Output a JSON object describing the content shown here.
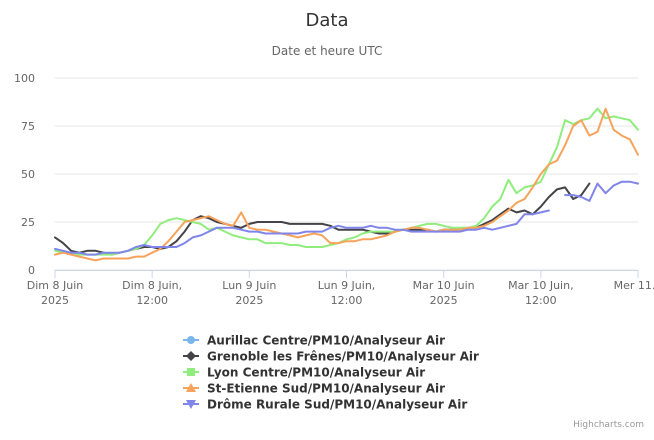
{
  "credits": "Highcharts.com",
  "chart_data": {
    "type": "line",
    "title": "Data",
    "subtitle": "Date et heure UTC",
    "xlabel": "",
    "ylabel": "",
    "ylim": [
      0,
      100
    ],
    "y_ticks": [
      "0",
      "25",
      "50",
      "75",
      "100"
    ],
    "x_ticks": [
      {
        "t": 0,
        "lines": [
          "Dim 8 Juin",
          "2025"
        ]
      },
      {
        "t": 12,
        "lines": [
          "Dim 8 Juin,",
          "12:00"
        ]
      },
      {
        "t": 24,
        "lines": [
          "Lun 9 Juin",
          "2025"
        ]
      },
      {
        "t": 36,
        "lines": [
          "Lun 9 Juin,",
          "12:00"
        ]
      },
      {
        "t": 48,
        "lines": [
          "Mar 10 Juin",
          "2025"
        ]
      },
      {
        "t": 60,
        "lines": [
          "Mar 10 Juin,",
          "12:00"
        ]
      },
      {
        "t": 72,
        "lines": [
          "Mer 11..."
        ]
      }
    ],
    "x_hours_range": [
      0,
      72
    ],
    "grid": true,
    "legend_position": "bottom-center",
    "series": [
      {
        "name": "Aurillac Centre/PM10/Analyseur Air",
        "color": "#7cb5ec",
        "marker": "circle",
        "x": [],
        "values": []
      },
      {
        "name": "Grenoble les Frênes/PM10/Analyseur Air",
        "color": "#434348",
        "marker": "diamond",
        "x": [
          0,
          1,
          2,
          3,
          4,
          5,
          6,
          7,
          8,
          9,
          10,
          11,
          12,
          13,
          14,
          15,
          16,
          17,
          18,
          19,
          20,
          21,
          22,
          23,
          24,
          25,
          26,
          27,
          28,
          29,
          30,
          31,
          32,
          33,
          34,
          35,
          36,
          37,
          38,
          39,
          40,
          41,
          42,
          43,
          44,
          45,
          46,
          47,
          48,
          49,
          50,
          51,
          52,
          53,
          54,
          55,
          56,
          57,
          58,
          59,
          60,
          61,
          62,
          63,
          64,
          65,
          66
        ],
        "values": [
          17,
          14,
          10,
          9,
          10,
          10,
          9,
          8,
          9,
          10,
          11,
          12,
          12,
          11,
          12,
          15,
          20,
          26,
          28,
          27,
          25,
          24,
          23,
          22,
          24,
          25,
          25,
          25,
          25,
          24,
          24,
          24,
          24,
          24,
          23,
          21,
          21,
          21,
          21,
          20,
          19,
          19,
          20,
          21,
          21,
          21,
          21,
          20,
          21,
          21,
          21,
          22,
          22,
          24,
          26,
          29,
          32,
          30,
          31,
          29,
          33,
          38,
          42,
          43,
          37,
          39,
          45
        ]
      },
      {
        "name": "Lyon Centre/PM10/Analyseur Air",
        "color": "#90ed7d",
        "marker": "square",
        "x": [
          0,
          1,
          2,
          3,
          4,
          5,
          6,
          7,
          8,
          9,
          10,
          11,
          12,
          13,
          14,
          15,
          16,
          17,
          18,
          19,
          20,
          21,
          22,
          23,
          24,
          25,
          26,
          27,
          28,
          29,
          30,
          31,
          32,
          33,
          34,
          35,
          36,
          37,
          38,
          39,
          40,
          41,
          42,
          43,
          44,
          45,
          46,
          47,
          48,
          49,
          50,
          51,
          52,
          53,
          54,
          55,
          56,
          57,
          58,
          59,
          60,
          61,
          62,
          63,
          64,
          65,
          66,
          67,
          68,
          69,
          70,
          71,
          72
        ],
        "values": [
          10,
          9,
          9,
          8,
          8,
          8,
          8,
          8,
          9,
          10,
          11,
          13,
          18,
          24,
          26,
          27,
          26,
          25,
          24,
          21,
          22,
          20,
          18,
          17,
          16,
          16,
          14,
          14,
          14,
          13,
          13,
          12,
          12,
          12,
          13,
          14,
          16,
          17,
          19,
          20,
          20,
          20,
          20,
          21,
          22,
          23,
          24,
          24,
          23,
          22,
          22,
          22,
          23,
          27,
          33,
          37,
          47,
          40,
          43,
          44,
          46,
          55,
          64,
          78,
          76,
          78,
          79,
          84,
          79,
          80,
          79,
          78,
          73
        ]
      },
      {
        "name": "St-Etienne Sud/PM10/Analyseur Air",
        "color": "#f7a35c",
        "marker": "triangle",
        "x": [
          0,
          1,
          2,
          3,
          4,
          5,
          6,
          7,
          8,
          9,
          10,
          11,
          12,
          13,
          14,
          15,
          16,
          17,
          18,
          19,
          20,
          21,
          22,
          23,
          24,
          25,
          26,
          27,
          28,
          29,
          30,
          31,
          32,
          33,
          34,
          35,
          36,
          37,
          38,
          39,
          40,
          41,
          42,
          43,
          44,
          45,
          46,
          47,
          48,
          49,
          50,
          51,
          52,
          53,
          54,
          55,
          56,
          57,
          58,
          59,
          60,
          61,
          62,
          63,
          64,
          65,
          66,
          67,
          68,
          69,
          70,
          71,
          72
        ],
        "values": [
          8,
          9,
          8,
          7,
          6,
          5,
          6,
          6,
          6,
          6,
          7,
          7,
          9,
          11,
          15,
          20,
          25,
          26,
          27,
          28,
          26,
          24,
          23,
          30,
          22,
          21,
          21,
          20,
          19,
          18,
          17,
          18,
          19,
          18,
          14,
          14,
          15,
          15,
          16,
          16,
          17,
          18,
          20,
          21,
          22,
          22,
          21,
          20,
          21,
          21,
          21,
          22,
          22,
          23,
          25,
          28,
          31,
          35,
          37,
          43,
          50,
          55,
          57,
          65,
          75,
          78,
          70,
          72,
          84,
          73,
          70,
          68,
          60
        ]
      },
      {
        "name": "Drôme Rurale Sud/PM10/Analyseur Air",
        "color": "#8085e9",
        "marker": "triangle-down",
        "x": [
          0,
          1,
          2,
          3,
          4,
          5,
          6,
          7,
          8,
          9,
          10,
          11,
          12,
          13,
          14,
          15,
          16,
          17,
          18,
          19,
          20,
          21,
          22,
          23,
          24,
          25,
          26,
          27,
          28,
          29,
          30,
          31,
          32,
          33,
          34,
          35,
          36,
          37,
          38,
          39,
          40,
          41,
          42,
          43,
          44,
          45,
          46,
          47,
          48,
          49,
          50,
          51,
          52,
          53,
          54,
          55,
          56,
          57,
          58,
          59,
          60,
          61,
          62,
          63,
          64,
          65,
          66,
          67,
          68,
          69,
          70,
          71,
          72
        ],
        "values": [
          11,
          10,
          9,
          9,
          8,
          8,
          9,
          9,
          9,
          10,
          12,
          13,
          12,
          12,
          12,
          12,
          14,
          17,
          18,
          20,
          22,
          22,
          22,
          21,
          20,
          20,
          19,
          19,
          19,
          19,
          19,
          20,
          20,
          20,
          22,
          23,
          22,
          22,
          22,
          23,
          22,
          22,
          21,
          21,
          20,
          20,
          20,
          20,
          20,
          20,
          20,
          21,
          21,
          22,
          21,
          22,
          23,
          24,
          29,
          29,
          30,
          31,
          null,
          39,
          39,
          38,
          36,
          45,
          40,
          44,
          46,
          46,
          45
        ]
      }
    ]
  }
}
